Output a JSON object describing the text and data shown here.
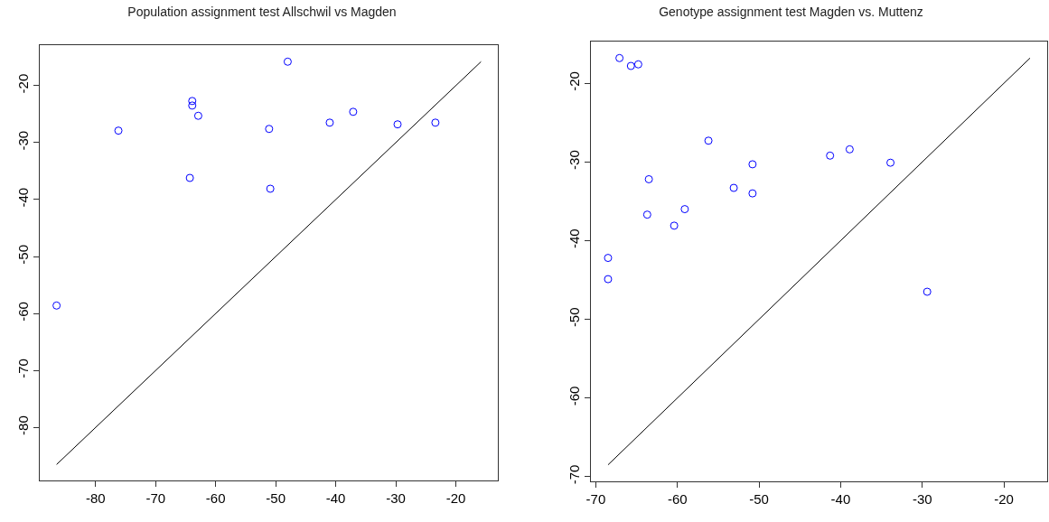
{
  "chart_data": [
    {
      "type": "scatter",
      "title": "Population assignment test Allschwil vs Magden",
      "xlim": [
        -89.3,
        -13.0
      ],
      "ylim": [
        -89.3,
        -12.9
      ],
      "xticks": [
        -80,
        -70,
        -60,
        -50,
        -40,
        -30,
        -20
      ],
      "yticks": [
        -80,
        -70,
        -60,
        -50,
        -40,
        -30,
        -20
      ],
      "series": [
        {
          "marker": "circle",
          "color": "#0000ff",
          "x": [
            -86.5,
            -76.2,
            -63.9,
            -63.9,
            -62.9,
            -64.3,
            -48.0,
            -51.1,
            -50.9,
            -41.0,
            -37.1,
            -29.7,
            -23.4
          ],
          "values": [
            -58.6,
            -27.9,
            -22.7,
            -23.5,
            -25.3,
            -36.2,
            -15.8,
            -27.6,
            -38.1,
            -26.5,
            -24.6,
            -26.8,
            -26.5
          ]
        },
        {
          "type": "line",
          "marker": "none",
          "color": "#000000",
          "x": [
            -86.5,
            -15.8
          ],
          "values": [
            -86.5,
            -15.8
          ]
        }
      ]
    },
    {
      "type": "scatter",
      "title": "Genotype assignment test Magden vs. Muttenz",
      "xlim": [
        -70.6,
        -14.7
      ],
      "ylim": [
        -70.6,
        -14.7
      ],
      "xticks": [
        -70,
        -60,
        -50,
        -40,
        -30,
        -20
      ],
      "yticks": [
        -70,
        -60,
        -50,
        -40,
        -30,
        -20
      ],
      "series": [
        {
          "marker": "circle",
          "color": "#0000ff",
          "x": [
            -67.1,
            -65.7,
            -64.8,
            -56.2,
            -63.5,
            -63.7,
            -60.4,
            -59.1,
            -53.1,
            -50.8,
            -50.8,
            -41.3,
            -38.9,
            -33.9,
            -68.5,
            -68.5,
            -29.4
          ],
          "values": [
            -16.8,
            -17.8,
            -17.6,
            -27.3,
            -32.2,
            -36.7,
            -38.1,
            -36.0,
            -33.3,
            -30.3,
            -34.0,
            -29.2,
            -28.4,
            -30.1,
            -42.2,
            -44.9,
            -46.5
          ]
        },
        {
          "type": "line",
          "marker": "none",
          "color": "#000000",
          "x": [
            -68.5,
            -16.8
          ],
          "values": [
            -68.5,
            -16.8
          ]
        }
      ]
    }
  ]
}
